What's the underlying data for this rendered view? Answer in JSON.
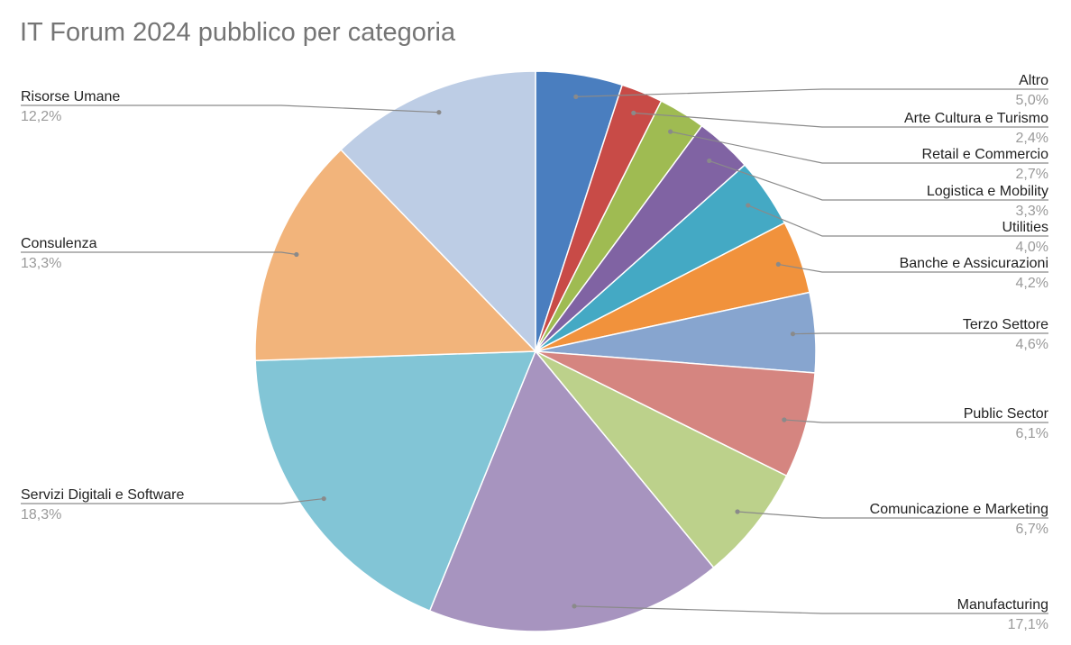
{
  "chart_data": {
    "type": "pie",
    "title": "IT Forum 2024 pubblico per categoria",
    "slices": [
      {
        "label": "Altro",
        "value": 5.0,
        "value_label": "5,0%",
        "color": "#4a7ebf"
      },
      {
        "label": "Arte Cultura e Turismo",
        "value": 2.4,
        "value_label": "2,4%",
        "color": "#c84b47"
      },
      {
        "label": "Retail e Commercio",
        "value": 2.7,
        "value_label": "2,7%",
        "color": "#9fbb52"
      },
      {
        "label": "Logistica e Mobility",
        "value": 3.3,
        "value_label": "3,3%",
        "color": "#8063a3"
      },
      {
        "label": "Utilities",
        "value": 4.0,
        "value_label": "4,0%",
        "color": "#44a9c4"
      },
      {
        "label": "Banche e Assicurazioni",
        "value": 4.2,
        "value_label": "4,2%",
        "color": "#f1923c"
      },
      {
        "label": "Terzo Settore",
        "value": 4.6,
        "value_label": "4,6%",
        "color": "#87a5cf"
      },
      {
        "label": "Public Sector",
        "value": 6.1,
        "value_label": "6,1%",
        "color": "#d58580"
      },
      {
        "label": "Comunicazione e Marketing",
        "value": 6.7,
        "value_label": "6,7%",
        "color": "#bcd18b"
      },
      {
        "label": "Manufacturing",
        "value": 17.1,
        "value_label": "17,1%",
        "color": "#a794bf"
      },
      {
        "label": "Servizi Digitali e Software",
        "value": 18.3,
        "value_label": "18,3%",
        "color": "#82c5d6"
      },
      {
        "label": "Consulenza",
        "value": 13.3,
        "value_label": "13,3%",
        "color": "#f2b47b"
      },
      {
        "label": "Risorse Umane",
        "value": 12.2,
        "value_label": "12,2%",
        "color": "#bdcde5"
      }
    ]
  }
}
